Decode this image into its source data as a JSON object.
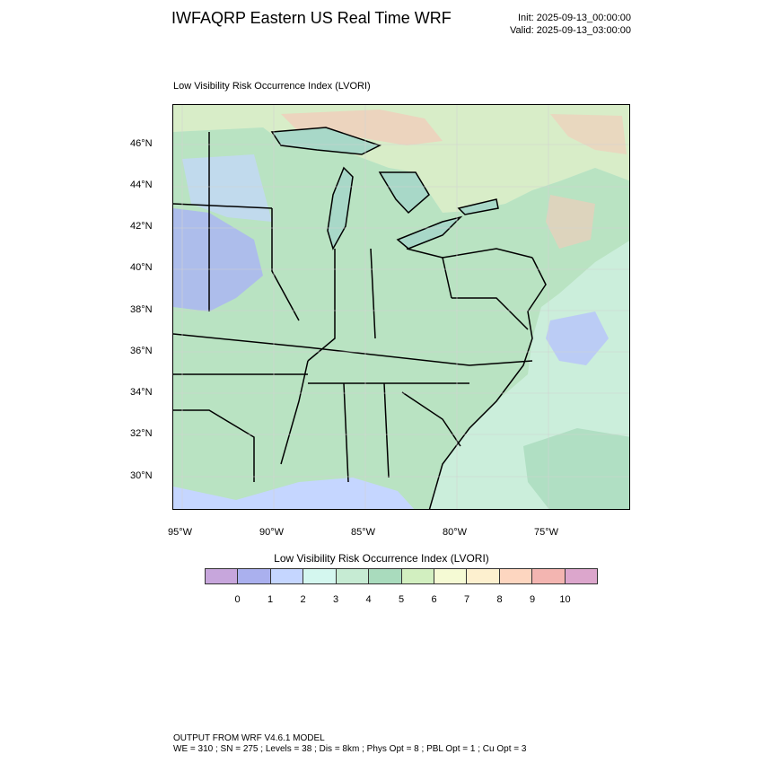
{
  "header": {
    "title": "IWFAQRP Eastern US Real Time WRF",
    "init": "Init: 2025-09-13_00:00:00",
    "valid": "Valid: 2025-09-13_03:00:00"
  },
  "panel": {
    "title": "Low Visibility Risk Occurrence Index   (LVORI)"
  },
  "map": {
    "lat_labels": [
      "46°N",
      "44°N",
      "42°N",
      "40°N",
      "38°N",
      "36°N",
      "34°N",
      "32°N",
      "30°N"
    ],
    "lon_labels": [
      "95°W",
      "90°W",
      "85°W",
      "80°W",
      "75°W"
    ],
    "colors": {
      "ocean": "#cbeedb",
      "land_base": "#b9e3c2",
      "canada": "#d8edc8",
      "lake": "#a8d8c8",
      "state_lines": "#000000",
      "county_lines": "#222222"
    }
  },
  "colorbar": {
    "title": "Low Visibility Risk Occurrence Index  (LVORI)",
    "labels": [
      "0",
      "1",
      "2",
      "3",
      "4",
      "5",
      "6",
      "7",
      "8",
      "9",
      "10"
    ],
    "colors": [
      "#c7a6dc",
      "#aab0ee",
      "#c5d6ff",
      "#d4f7ef",
      "#c6ebd3",
      "#a9dbbd",
      "#d2efc0",
      "#f5fad4",
      "#fdf0cf",
      "#fdd6c0",
      "#f3b5b1",
      "#dca6cc"
    ]
  },
  "footer": {
    "line1": "OUTPUT FROM WRF V4.6.1 MODEL",
    "line2": "WE = 310 ; SN = 275 ; Levels = 38 ; Dis = 8km ; Phys Opt = 8 ; PBL Opt = 1 ; Cu Opt = 3"
  }
}
